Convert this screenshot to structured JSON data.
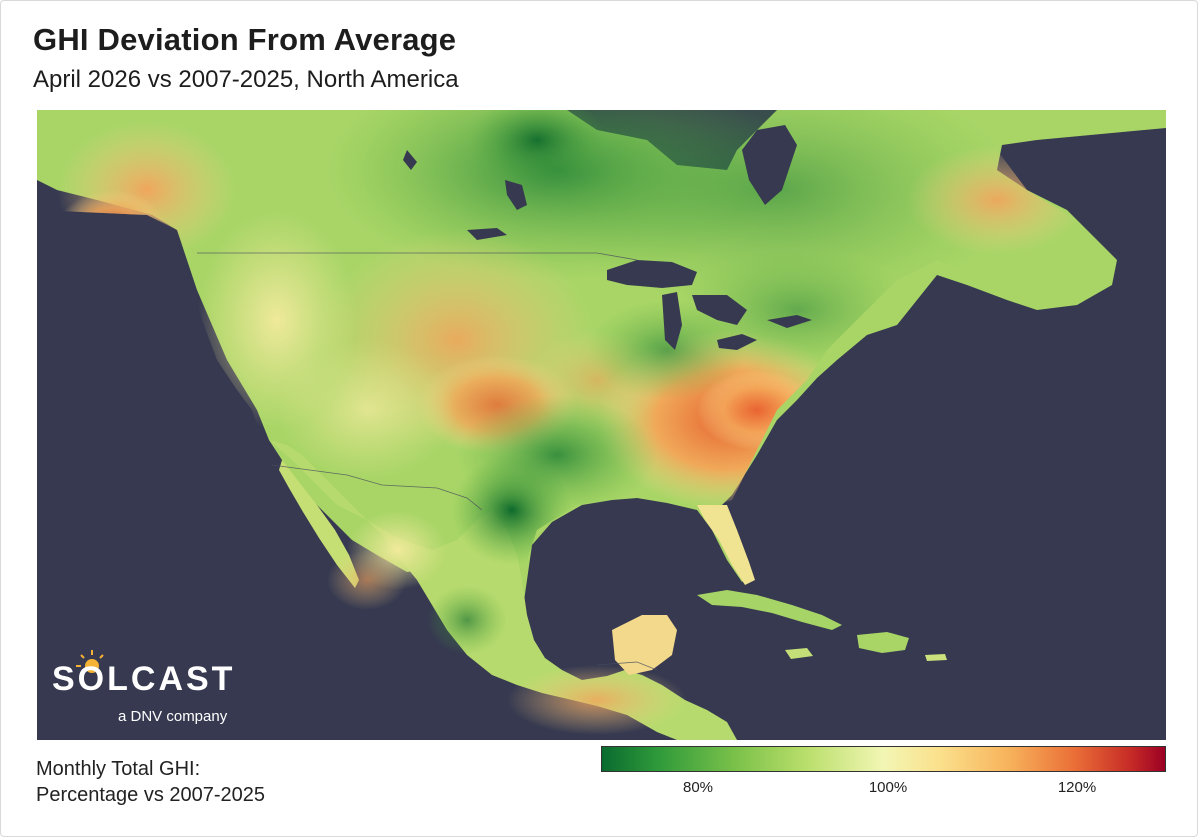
{
  "title": "GHI Deviation From Average",
  "subtitle": "April 2026 vs 2007-2025, North America",
  "brand": {
    "name": "SOLCAST",
    "tagline": "a DNV company",
    "accent": "#f5b335"
  },
  "legend": {
    "title_line1": "Monthly Total GHI:",
    "title_line2": "Percentage vs 2007-2025",
    "ticks": [
      {
        "label": "80%",
        "value": 80
      },
      {
        "label": "100%",
        "value": 100
      },
      {
        "label": "120%",
        "value": 120
      }
    ],
    "colors": {
      "low": "#0a6b2f",
      "neutral": "#f2f6b4",
      "high": "#9b0024"
    }
  },
  "map": {
    "ocean_color": "#363950",
    "land_color": "#a9d463"
  }
}
